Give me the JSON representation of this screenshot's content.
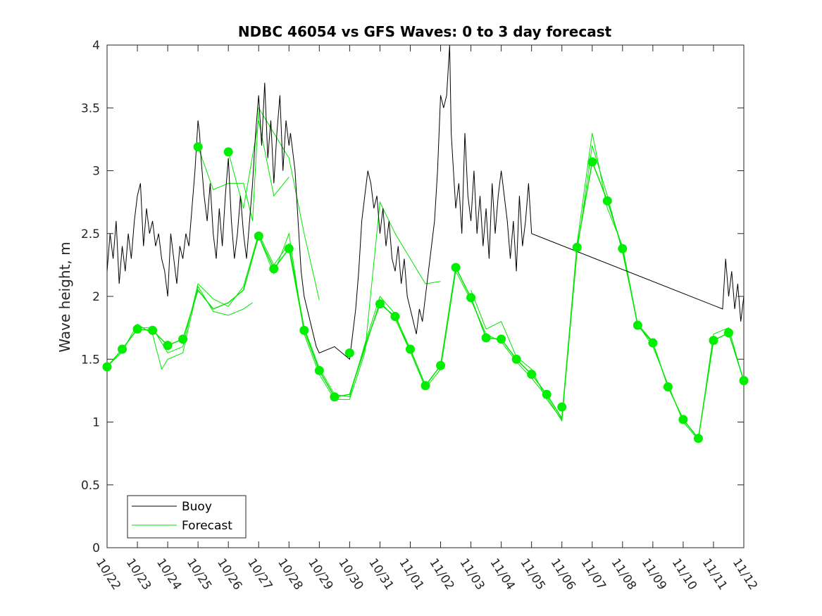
{
  "chart_data": {
    "type": "line",
    "title": "NDBC 46054 vs GFS Waves: 0 to 3 day forecast",
    "xlabel": "",
    "ylabel": "Wave height, m",
    "xlim": [
      0,
      21
    ],
    "ylim": [
      0,
      4
    ],
    "yticks": [
      0,
      0.5,
      1,
      1.5,
      2,
      2.5,
      3,
      3.5,
      4
    ],
    "ytick_labels": [
      "0",
      "0.5",
      "1",
      "1.5",
      "2",
      "2.5",
      "3",
      "3.5",
      "4"
    ],
    "x_tick_labels": [
      "10/22",
      "10/23",
      "10/24",
      "10/25",
      "10/26",
      "10/27",
      "10/28",
      "10/29",
      "10/30",
      "10/31",
      "11/01",
      "11/02",
      "11/03",
      "11/04",
      "11/05",
      "11/06",
      "11/07",
      "11/08",
      "11/09",
      "11/10",
      "11/11",
      "11/12"
    ],
    "x_units": "days since 10/22",
    "legend": {
      "position": "bottom-left",
      "entries": [
        {
          "label": "Buoy",
          "color": "#000000"
        },
        {
          "label": "Forecast",
          "color": "#00e600"
        }
      ]
    },
    "colors": {
      "buoy": "#000000",
      "forecast": "#00e600",
      "marker": "#00ee00",
      "axes": "#262626"
    },
    "series": [
      {
        "name": "Buoy",
        "x": [
          0,
          0.1,
          0.2,
          0.3,
          0.4,
          0.5,
          0.6,
          0.7,
          0.8,
          0.9,
          1.0,
          1.1,
          1.2,
          1.3,
          1.4,
          1.5,
          1.6,
          1.7,
          1.8,
          1.9,
          2.0,
          2.1,
          2.2,
          2.3,
          2.4,
          2.5,
          2.6,
          2.7,
          2.8,
          2.9,
          3.0,
          3.05,
          3.1,
          3.2,
          3.3,
          3.4,
          3.5,
          3.6,
          3.7,
          3.8,
          3.9,
          4.0,
          4.1,
          4.2,
          4.3,
          4.4,
          4.5,
          4.6,
          4.7,
          4.8,
          4.9,
          5.0,
          5.1,
          5.2,
          5.3,
          5.4,
          5.5,
          5.6,
          5.7,
          5.8,
          5.9,
          6.0,
          6.05,
          6.1,
          6.2,
          6.3,
          6.4,
          6.5,
          6.6,
          6.7,
          6.8,
          6.9,
          7.0,
          7.5,
          8.0,
          8.1,
          8.2,
          8.3,
          8.4,
          8.5,
          8.6,
          8.7,
          8.8,
          8.9,
          9.0,
          9.1,
          9.2,
          9.3,
          9.4,
          9.5,
          9.6,
          9.7,
          9.8,
          9.9,
          10.0,
          10.1,
          10.2,
          10.3,
          10.4,
          10.5,
          10.6,
          10.7,
          10.8,
          10.9,
          11.0,
          11.1,
          11.2,
          11.3,
          11.35,
          11.4,
          11.5,
          11.6,
          11.7,
          11.8,
          11.9,
          12.0,
          12.1,
          12.2,
          12.3,
          12.4,
          12.5,
          12.6,
          12.7,
          12.8,
          12.9,
          13.0,
          13.05,
          13.1,
          13.2,
          13.3,
          13.4,
          13.5,
          13.6,
          13.7,
          13.8,
          13.9,
          14.0,
          20.3,
          20.4,
          20.5,
          20.6,
          20.7,
          20.8,
          20.9,
          21.0
        ],
        "values": [
          2.2,
          2.5,
          2.3,
          2.6,
          2.1,
          2.4,
          2.2,
          2.5,
          2.3,
          2.6,
          2.8,
          2.9,
          2.4,
          2.7,
          2.5,
          2.6,
          2.4,
          2.5,
          2.3,
          2.2,
          2.0,
          2.5,
          2.3,
          2.1,
          2.4,
          2.3,
          2.5,
          2.4,
          2.7,
          3.0,
          3.4,
          3.3,
          3.1,
          2.8,
          2.6,
          2.9,
          2.5,
          2.3,
          2.7,
          2.4,
          2.8,
          3.1,
          2.6,
          2.3,
          2.5,
          2.8,
          2.5,
          2.3,
          2.6,
          2.9,
          3.3,
          3.6,
          3.2,
          3.7,
          3.1,
          3.4,
          2.9,
          3.3,
          3.6,
          3.0,
          3.4,
          3.2,
          3.3,
          3.2,
          3.0,
          2.6,
          2.2,
          2.0,
          1.9,
          1.8,
          1.7,
          1.6,
          1.55,
          1.6,
          1.5,
          1.7,
          1.9,
          2.2,
          2.6,
          2.8,
          3.0,
          2.9,
          2.7,
          2.8,
          2.5,
          2.7,
          2.4,
          2.6,
          2.3,
          2.2,
          2.4,
          2.1,
          2.3,
          2.0,
          1.9,
          1.8,
          1.7,
          1.9,
          1.8,
          2.0,
          2.2,
          2.4,
          2.6,
          3.0,
          3.6,
          3.5,
          3.6,
          4.0,
          3.3,
          3.1,
          2.7,
          2.9,
          2.5,
          3.3,
          2.8,
          2.6,
          3.0,
          2.5,
          2.8,
          2.4,
          2.7,
          2.3,
          2.9,
          2.5,
          2.8,
          3.0,
          2.9,
          2.8,
          2.6,
          2.3,
          2.6,
          2.2,
          2.8,
          2.4,
          2.6,
          2.9,
          2.5,
          1.9,
          2.3,
          2.0,
          2.2,
          1.9,
          2.1,
          1.8,
          2.0
        ]
      },
      {
        "name": "Forecast",
        "x": [
          0,
          0.5,
          1.0,
          1.5,
          2.0,
          2.5,
          3.0,
          3.5,
          4.0,
          4.5,
          5.0,
          5.5,
          6.0,
          6.5,
          7.0,
          7.5,
          8.0,
          8.5,
          9.0,
          9.5,
          10.0,
          10.5,
          11.0,
          11.5,
          12.0,
          12.5,
          13.0,
          13.5,
          14.0,
          14.5,
          15.0,
          15.5,
          16.0,
          16.5,
          17.0,
          17.5,
          18.0,
          18.5,
          19.0,
          19.5,
          20.0,
          20.5,
          21.0
        ],
        "values": [
          1.44,
          1.58,
          1.74,
          1.73,
          1.61,
          1.66,
          2.05,
          1.9,
          1.95,
          2.05,
          2.48,
          2.22,
          2.38,
          1.73,
          1.41,
          1.2,
          1.22,
          1.6,
          1.94,
          1.84,
          1.58,
          1.29,
          1.45,
          2.23,
          1.99,
          1.67,
          1.66,
          1.5,
          1.38,
          1.22,
          1.03,
          2.39,
          3.07,
          2.76,
          2.38,
          1.77,
          1.63,
          1.28,
          1.02,
          0.87,
          1.65,
          1.71,
          1.33
        ]
      },
      {
        "name": "Forecast markers",
        "x": [
          0,
          0.5,
          1.0,
          1.5,
          2.0,
          2.5,
          3.0,
          4.0,
          5.0,
          5.5,
          6.0,
          6.5,
          7.0,
          7.5,
          8.0,
          9.0,
          9.5,
          10.0,
          10.5,
          11.0,
          11.5,
          12.0,
          12.5,
          13.0,
          13.5,
          14.0,
          14.5,
          15.0,
          15.5,
          16.0,
          16.5,
          17.0,
          17.5,
          18.0,
          18.5,
          19.0,
          19.5,
          20.0,
          20.5,
          21.0
        ],
        "values": [
          1.44,
          1.58,
          1.74,
          1.73,
          1.61,
          1.66,
          3.19,
          3.15,
          2.48,
          2.22,
          2.38,
          1.73,
          1.41,
          1.2,
          1.55,
          1.94,
          1.84,
          1.58,
          1.29,
          1.45,
          2.23,
          1.99,
          1.67,
          1.66,
          1.5,
          1.38,
          1.22,
          1.12,
          2.39,
          3.07,
          2.76,
          2.38,
          1.77,
          1.63,
          1.28,
          1.02,
          0.87,
          1.65,
          1.71,
          1.33
        ]
      },
      {
        "name": "Forecast (other runs)",
        "runs": [
          {
            "x": [
              0,
              0.5,
              1.0,
              1.5,
              1.8,
              2.0,
              2.5,
              3.0,
              3.5,
              4.0,
              4.5,
              4.8
            ],
            "values": [
              1.44,
              1.56,
              1.78,
              1.7,
              1.42,
              1.5,
              1.55,
              2.08,
              1.88,
              1.85,
              1.9,
              1.95
            ]
          },
          {
            "x": [
              1.0,
              1.5,
              2.0,
              2.5,
              3.0,
              3.5,
              4.0,
              4.5,
              5.0,
              5.5,
              6.0,
              6.5,
              7.0,
              7.5,
              8.0,
              8.5,
              9.0,
              9.5,
              10.0
            ],
            "values": [
              1.75,
              1.75,
              1.55,
              1.6,
              2.1,
              1.98,
              1.92,
              2.08,
              2.5,
              2.25,
              2.42,
              1.75,
              1.43,
              1.22,
              1.2,
              1.62,
              2.0,
              1.86,
              1.55
            ]
          },
          {
            "x": [
              3.0,
              3.5,
              4.0,
              4.5,
              4.8,
              5.0,
              5.5,
              6.0,
              6.5,
              7.0
            ],
            "values": [
              3.19,
              2.85,
              2.9,
              2.9,
              2.6,
              3.5,
              3.3,
              3.1,
              2.5,
              1.97
            ]
          },
          {
            "x": [
              4.0,
              4.5,
              5.0,
              5.5,
              6.0
            ],
            "values": [
              3.15,
              2.7,
              3.4,
              2.8,
              2.95
            ]
          },
          {
            "x": [
              5.0,
              5.5,
              6.0,
              6.5,
              7.0,
              7.5,
              8.0,
              8.5,
              9.0,
              9.5,
              10.0,
              10.5,
              11.0
            ],
            "values": [
              2.48,
              2.18,
              2.5,
              1.7,
              1.38,
              1.18,
              1.18,
              1.55,
              2.75,
              2.5,
              2.3,
              2.1,
              2.12
            ]
          },
          {
            "x": [
              8.0,
              8.5,
              9.0,
              9.5,
              10.0,
              10.5,
              11.0,
              11.5,
              12.0,
              12.5,
              13.0,
              13.5,
              14.0,
              14.5,
              15.0,
              15.5,
              16.0,
              16.5,
              17.0,
              17.5,
              18.0,
              18.5,
              19.0,
              19.5,
              20.0,
              20.5,
              21.0
            ],
            "values": [
              1.22,
              1.58,
              1.96,
              1.82,
              1.56,
              1.27,
              1.42,
              2.2,
              1.97,
              1.7,
              1.64,
              1.48,
              1.35,
              1.2,
              1.01,
              2.35,
              3.2,
              2.8,
              2.35,
              1.78,
              1.6,
              1.3,
              1.0,
              0.86,
              1.7,
              1.75,
              1.32
            ]
          },
          {
            "x": [
              12.0,
              12.5,
              13.0,
              13.5,
              14.0,
              14.5,
              15.0,
              15.5,
              16.0,
              16.5,
              17.0,
              17.5,
              18.0
            ],
            "values": [
              2.05,
              1.74,
              1.8,
              1.52,
              1.42,
              1.18,
              1.02,
              2.42,
              3.3,
              2.7,
              2.4,
              1.78,
              1.64
            ]
          }
        ]
      }
    ]
  }
}
